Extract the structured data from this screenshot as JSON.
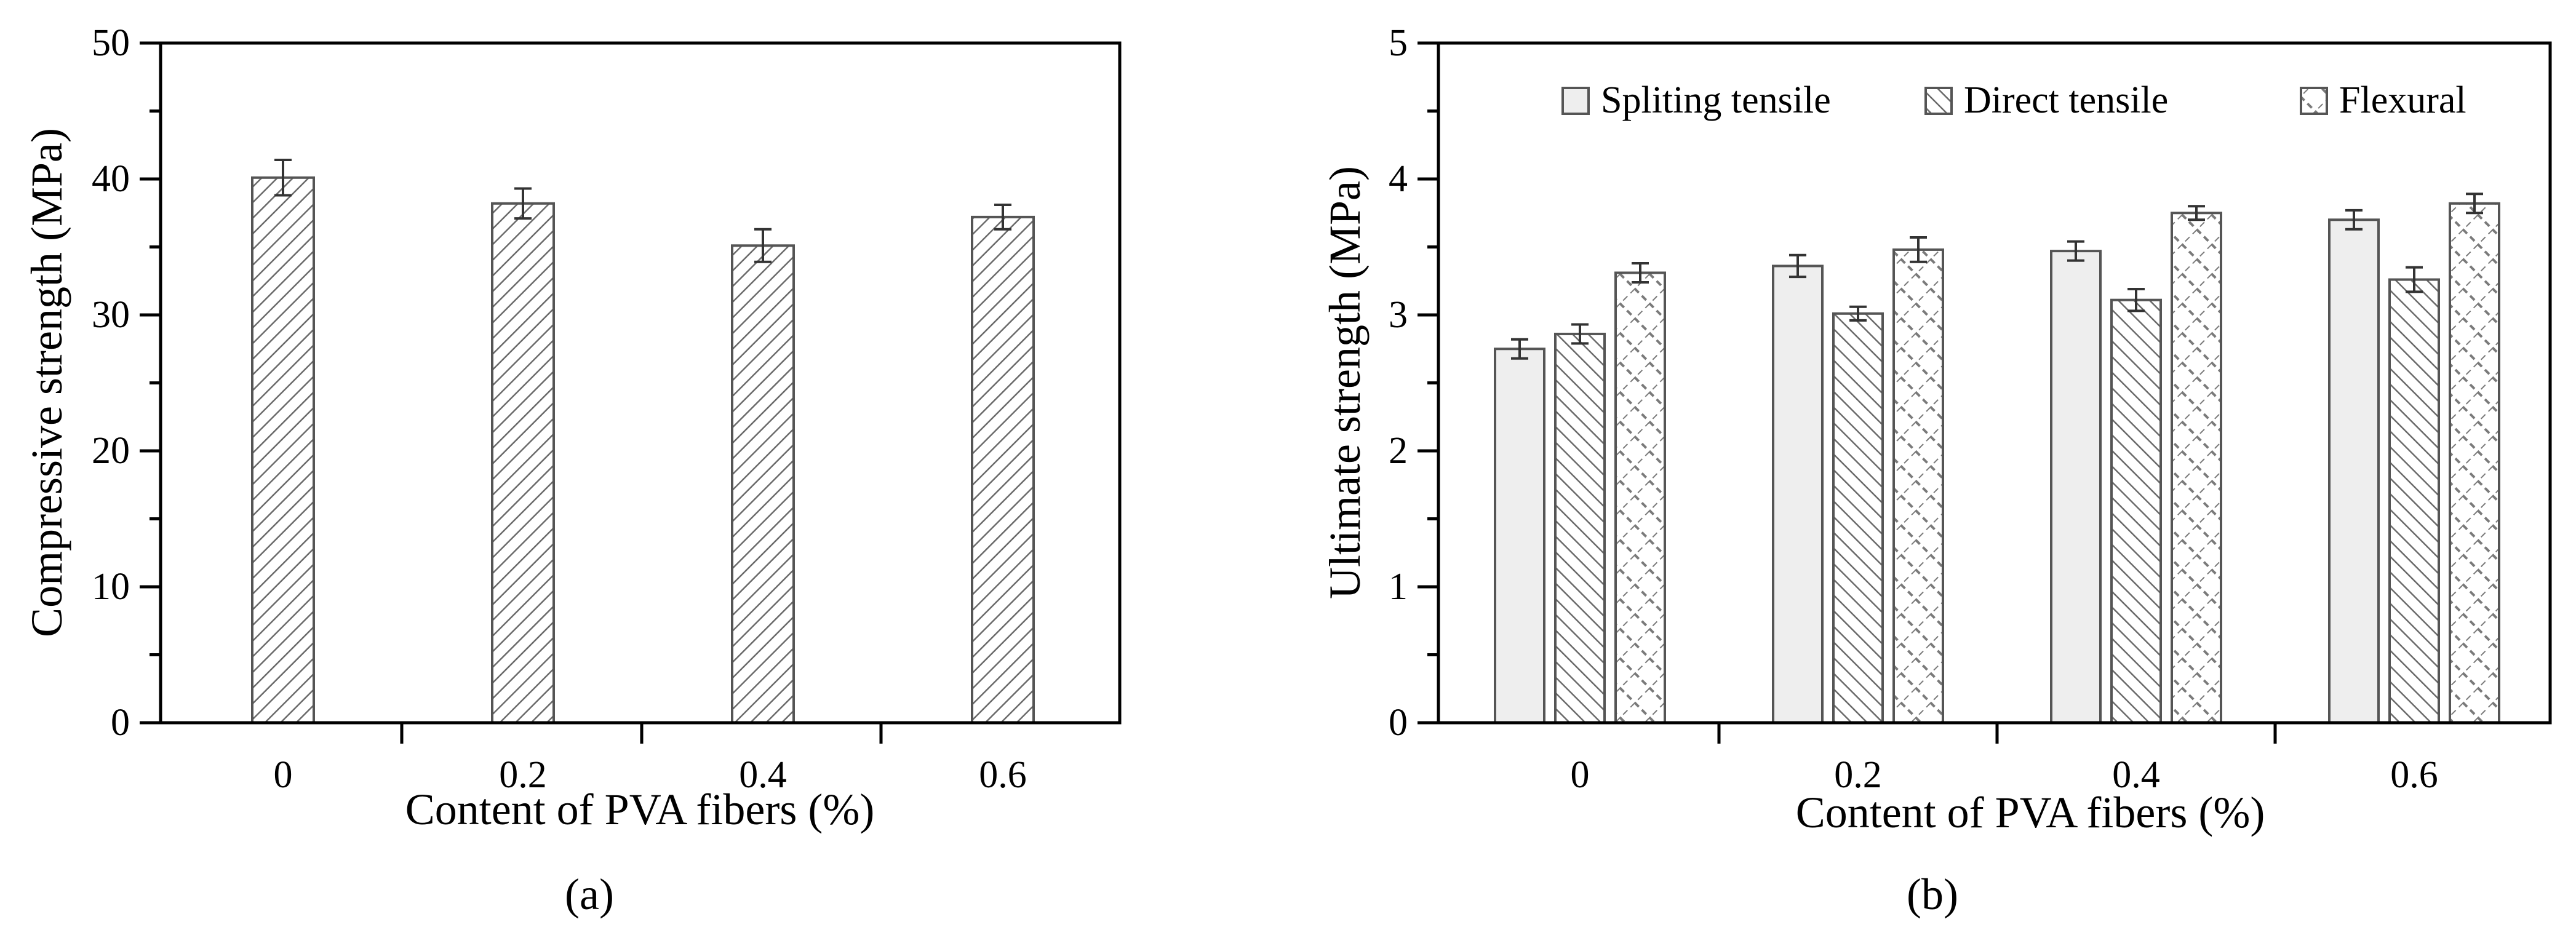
{
  "chart_data": [
    {
      "panel": "(a)",
      "type": "bar",
      "categories": [
        "0",
        "0.2",
        "0.4",
        "0.6"
      ],
      "series": [
        {
          "name": "Compressive strength",
          "values": [
            40.1,
            38.2,
            35.1,
            37.2
          ],
          "errors": [
            1.3,
            1.1,
            1.2,
            0.9
          ],
          "pattern": "hatch-right"
        }
      ],
      "xlabel": "Content of PVA fibers (%)",
      "ylabel": "Compressive strength (MPa)",
      "ylim": [
        0,
        50
      ],
      "yticks": [
        0,
        10,
        20,
        30,
        40,
        50
      ],
      "grid": false,
      "legend": null
    },
    {
      "panel": "(b)",
      "type": "bar",
      "categories": [
        "0",
        "0.2",
        "0.4",
        "0.6"
      ],
      "series": [
        {
          "name": "Spliting tensile",
          "values": [
            2.75,
            3.36,
            3.47,
            3.7
          ],
          "errors": [
            0.07,
            0.08,
            0.07,
            0.07
          ],
          "pattern": "solid-light"
        },
        {
          "name": "Direct tensile",
          "values": [
            2.86,
            3.01,
            3.11,
            3.26
          ],
          "errors": [
            0.07,
            0.05,
            0.08,
            0.09
          ],
          "pattern": "hatch-left"
        },
        {
          "name": "Flexural",
          "values": [
            3.31,
            3.48,
            3.75,
            3.82
          ],
          "errors": [
            0.07,
            0.09,
            0.05,
            0.07
          ],
          "pattern": "crosshatch"
        }
      ],
      "xlabel": "Content of PVA fibers (%)",
      "ylabel": "Ultimate strength (MPa)",
      "ylim": [
        0,
        5
      ],
      "yticks": [
        0,
        1,
        2,
        3,
        4,
        5
      ],
      "grid": false,
      "legend": "top"
    }
  ],
  "panel_labels": [
    "(a)",
    "(b)"
  ]
}
